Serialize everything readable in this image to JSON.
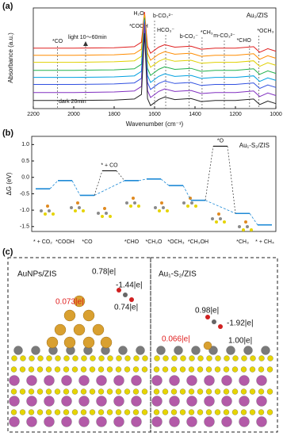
{
  "chart_data": [
    {
      "type": "line",
      "panel_label": "(a)",
      "title": "Au₁/ZIS",
      "x_label": "Wavenumber (cm⁻¹)",
      "y_label": "Absorbance (a.u.)",
      "xlim": [
        2200,
        1000
      ],
      "xticks": [
        2200,
        2000,
        1800,
        1600,
        1400,
        1200,
        1000
      ],
      "ylim": [
        0,
        10
      ],
      "x": [
        2200,
        2000,
        1800,
        1700,
        1665,
        1650,
        1635,
        1620,
        1580,
        1550,
        1500,
        1420,
        1370,
        1300,
        1200,
        1110,
        1080,
        1040,
        1000
      ],
      "series": [
        {
          "color": "#e02020",
          "values": [
            6.0,
            6.0,
            6.05,
            6.15,
            6.6,
            9.6,
            6.2,
            5.5,
            6.1,
            6.35,
            6.1,
            6.2,
            5.9,
            6.0,
            6.0,
            6.15,
            5.6,
            5.95,
            5.7
          ]
        },
        {
          "color": "#ff8c00",
          "values": [
            5.3,
            5.3,
            5.35,
            5.45,
            5.9,
            9.4,
            5.5,
            4.8,
            5.4,
            5.65,
            5.4,
            5.5,
            5.2,
            5.3,
            5.3,
            5.45,
            4.9,
            5.25,
            5.0
          ]
        },
        {
          "color": "#e0d000",
          "values": [
            4.6,
            4.6,
            4.65,
            4.75,
            5.2,
            9.2,
            4.8,
            4.1,
            4.7,
            4.95,
            4.7,
            4.8,
            4.5,
            4.6,
            4.6,
            4.75,
            4.2,
            4.55,
            4.3
          ]
        },
        {
          "color": "#22b14c",
          "values": [
            3.8,
            3.8,
            3.85,
            3.95,
            4.4,
            9.0,
            4.0,
            3.3,
            3.9,
            4.15,
            3.9,
            4.0,
            3.7,
            3.8,
            3.8,
            3.95,
            3.4,
            3.75,
            3.5
          ]
        },
        {
          "color": "#00a0e0",
          "values": [
            3.1,
            3.1,
            3.15,
            3.25,
            3.7,
            8.8,
            3.3,
            2.6,
            3.2,
            3.45,
            3.2,
            3.3,
            3.0,
            3.1,
            3.1,
            3.25,
            2.7,
            3.05,
            2.8
          ]
        },
        {
          "color": "#3050e0",
          "values": [
            2.4,
            2.4,
            2.45,
            2.55,
            3.0,
            8.6,
            2.6,
            1.9,
            2.5,
            2.75,
            2.5,
            2.6,
            2.3,
            2.4,
            2.4,
            2.55,
            2.0,
            2.35,
            2.1
          ]
        },
        {
          "color": "#8030c0",
          "values": [
            1.6,
            1.6,
            1.65,
            1.75,
            2.2,
            8.4,
            1.8,
            1.1,
            1.7,
            1.95,
            1.7,
            1.8,
            1.5,
            1.6,
            1.6,
            1.75,
            1.2,
            1.55,
            1.3
          ]
        },
        {
          "color": "#222222",
          "values": [
            0.8,
            0.8,
            0.85,
            0.95,
            1.4,
            7.5,
            1.0,
            0.3,
            0.9,
            1.15,
            0.9,
            1.0,
            0.7,
            0.8,
            0.8,
            0.95,
            0.4,
            0.75,
            0.5
          ]
        }
      ],
      "annotations": [
        {
          "text": "*CO",
          "x": 2080
        },
        {
          "text": "H₂O",
          "x": 1660
        },
        {
          "text": "*COOH",
          "x": 1640
        },
        {
          "text": "b-CO₃²⁻",
          "x": 1600
        },
        {
          "text": "HCO₃⁻",
          "x": 1545
        },
        {
          "text": "b-CO₂⁻",
          "x": 1430
        },
        {
          "text": "*CH₃",
          "x": 1365
        },
        {
          "text": "m-CO₃²⁻",
          "x": 1255
        },
        {
          "text": "*CHO",
          "x": 1130
        },
        {
          "text": "*OCH₃",
          "x": 1085
        }
      ],
      "light_label": "light 10～60min",
      "dark_label": "dark 20min"
    },
    {
      "type": "energy",
      "panel_label": "(b)",
      "title": "Au₁-S₂/ZIS",
      "y_label": "ΔG (eV)",
      "ylim": [
        -1.65,
        1.25
      ],
      "yticks": [
        {
          "value": 1,
          "label": "1.0"
        },
        0.5,
        {
          "value": 0,
          "label": "0.0"
        },
        -0.5,
        {
          "value": -1,
          "label": "-1.0"
        },
        -1.5
      ],
      "categories": [
        "* + CO₂",
        "*COOH",
        "*CO",
        null,
        "*CHO",
        "*CH₂O",
        "*OCH₃",
        "*CH₃OH",
        null,
        "*CH₃",
        "* + CH₄"
      ],
      "series": [
        {
          "color": "#1e8ad6",
          "values": [
            -0.35,
            -0.1,
            -0.55,
            null,
            -0.1,
            -0.05,
            -0.25,
            -0.7,
            null,
            -1.1,
            -1.45
          ]
        },
        {
          "color": "#111111",
          "values": [
            null,
            null,
            null,
            0.2,
            null,
            null,
            null,
            null,
            0.95,
            null,
            null
          ],
          "labels": [
            null,
            null,
            null,
            "* + CO",
            null,
            null,
            null,
            null,
            "*O",
            null,
            null
          ]
        }
      ]
    }
  ],
  "panel_c": {
    "panel_label": "(c)",
    "left": {
      "title": "AuNPs/ZIS",
      "charges": [
        "0.78|e|",
        "-1.44|e|",
        "0.073|e|",
        "0.74|e|"
      ]
    },
    "right": {
      "title": "Au₁-S₂/ZIS",
      "charges": [
        "0.98|e|",
        "-1.92|e|",
        "0.066|e|",
        "1.00|e|"
      ]
    }
  }
}
